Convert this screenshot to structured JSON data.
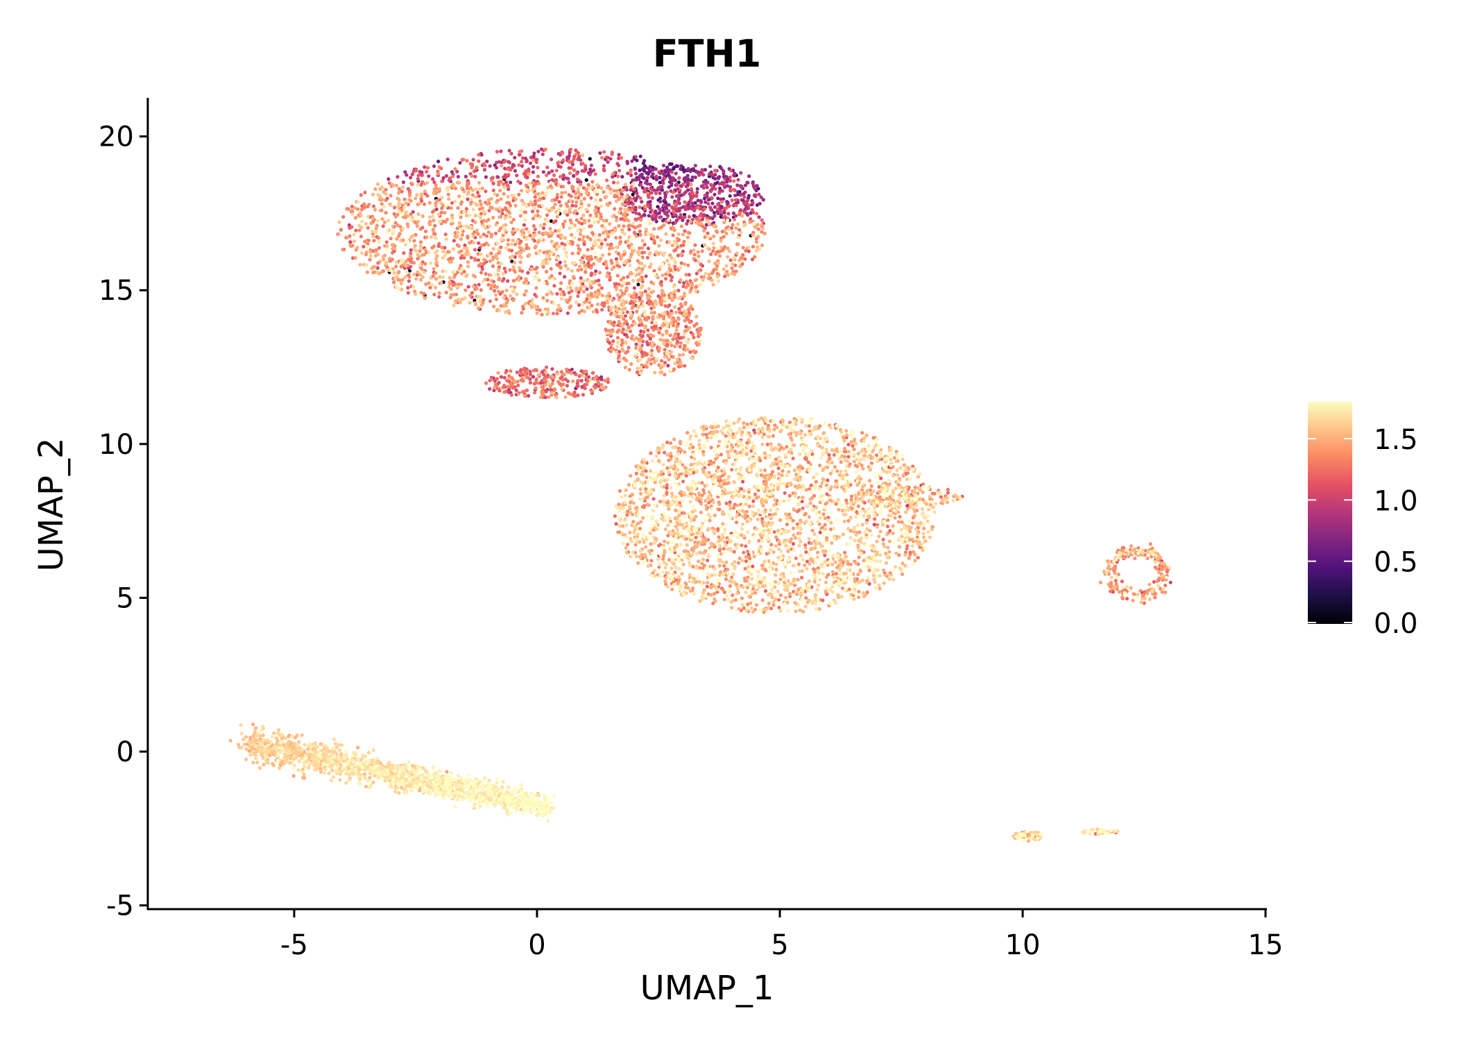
{
  "chart_data": {
    "type": "scatter",
    "title": "FTH1",
    "xlabel": "UMAP_1",
    "ylabel": "UMAP_2",
    "xlim": [
      -8.05,
      15
    ],
    "ylim": [
      -5.12,
      21.2
    ],
    "x_ticks": [
      {
        "value": -5,
        "label": "-5"
      },
      {
        "value": 0,
        "label": "0"
      },
      {
        "value": 5,
        "label": "5"
      },
      {
        "value": 10,
        "label": "10"
      },
      {
        "value": 15,
        "label": "15"
      }
    ],
    "y_ticks": [
      {
        "value": -5,
        "label": "-5"
      },
      {
        "value": 0,
        "label": "0"
      },
      {
        "value": 5,
        "label": "5"
      },
      {
        "value": 10,
        "label": "10"
      },
      {
        "value": 15,
        "label": "15"
      },
      {
        "value": 20,
        "label": "20"
      }
    ],
    "grid": false,
    "colorbar": {
      "colormap": "magma",
      "range": [
        0,
        1.8
      ],
      "ticks": [
        {
          "value": 0,
          "label": "0.0"
        },
        {
          "value": 0.5,
          "label": "0.5"
        },
        {
          "value": 1.0,
          "label": "1.0"
        },
        {
          "value": 1.5,
          "label": "1.5"
        }
      ],
      "placement": "right",
      "stops": [
        "#000004",
        "#1c1044",
        "#4f127b",
        "#812581",
        "#b5367a",
        "#e55064",
        "#fb8761",
        "#fec287",
        "#fcfdbf"
      ]
    },
    "clusters": [
      {
        "name": "top",
        "cx": 0.3,
        "cy": 16.9,
        "rx": 4.4,
        "ry": 2.7,
        "n": 2600,
        "mean_expr": 1.4
      },
      {
        "name": "top-dim-region",
        "cx": 3.2,
        "cy": 18.1,
        "rx": 1.5,
        "ry": 1.0,
        "n": 350,
        "mean_expr": 0.75
      },
      {
        "name": "bridge",
        "cx": 2.4,
        "cy": 13.6,
        "rx": 1.0,
        "ry": 1.4,
        "n": 450,
        "mean_expr": 1.35
      },
      {
        "name": "tail",
        "cx": 0.2,
        "cy": 12.0,
        "rx": 1.3,
        "ry": 0.5,
        "n": 250,
        "mean_expr": 1.2
      },
      {
        "name": "middle",
        "cx": 4.9,
        "cy": 7.7,
        "rx": 3.3,
        "ry": 3.2,
        "n": 2600,
        "mean_expr": 1.55
      },
      {
        "name": "middle-arm",
        "cx": 7.6,
        "cy": 8.3,
        "rx": 1.2,
        "ry": 0.35,
        "n": 120,
        "mean_expr": 1.5
      },
      {
        "name": "lower-left",
        "x0": -6.0,
        "y0": 0.3,
        "x1": 0.2,
        "y1": -1.8,
        "width": 0.8,
        "n": 1500,
        "mean_expr": 1.68
      },
      {
        "name": "ring",
        "cx": 12.35,
        "cy": 5.8,
        "rx": 0.7,
        "ry": 0.9,
        "n": 200,
        "mean_expr": 1.4
      },
      {
        "name": "small-a",
        "cx": 10.1,
        "cy": -2.75,
        "rx": 0.3,
        "ry": 0.15,
        "n": 60,
        "mean_expr": 1.6
      },
      {
        "name": "small-b",
        "cx": 11.6,
        "cy": -2.6,
        "rx": 0.4,
        "ry": 0.08,
        "n": 40,
        "mean_expr": 1.7
      }
    ]
  }
}
